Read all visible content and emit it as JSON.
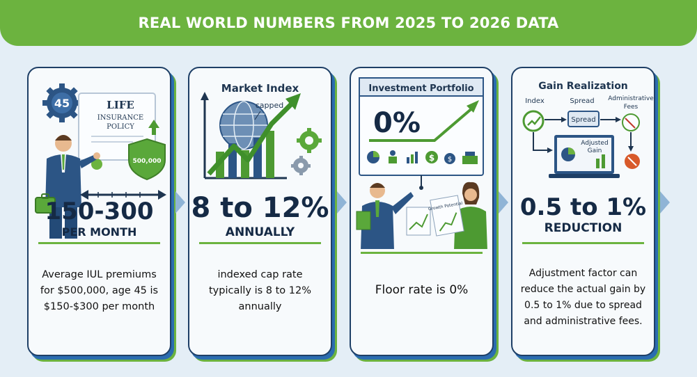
{
  "banner": {
    "title": "REAL WORLD NUMBERS FROM 2025 TO 2026 DATA"
  },
  "cards": [
    {
      "badge": "45",
      "doc_line1": "LIFE",
      "doc_line2": "INSURANCE",
      "doc_line3": "POLICY",
      "shield_text": "500,000",
      "big": "150-300",
      "sub": "PER MONTH",
      "desc": "Average IUL  premiums for $500,000, age 45 is $150-$300 per month"
    },
    {
      "title": "Market Index",
      "capped": "capped",
      "big": "8 to 12%",
      "sub": "ANNUALLY",
      "desc": "indexed cap rate typically is 8 to 12% annually"
    },
    {
      "title": "Investment Portfolio",
      "big": "0%",
      "chart_text": "Growth Potential",
      "desc": "Floor rate is 0%"
    },
    {
      "title": "Gain Realization",
      "label_index": "Index",
      "label_spread": "Spread",
      "label_admin1": "Administrative",
      "label_admin2": "Fees",
      "box_spread": "Spread",
      "laptop_text1": "Adjusted",
      "laptop_text2": "Gain",
      "big": "0.5 to 1%",
      "sub": "REDUCTION",
      "desc": "Adjustment factor can reduce the actual gain by 0.5 to 1% due to spread and administrative fees."
    }
  ],
  "colors": {
    "green": "#6cb33f",
    "navy": "#1e3f66",
    "blue": "#2b6cb0"
  }
}
